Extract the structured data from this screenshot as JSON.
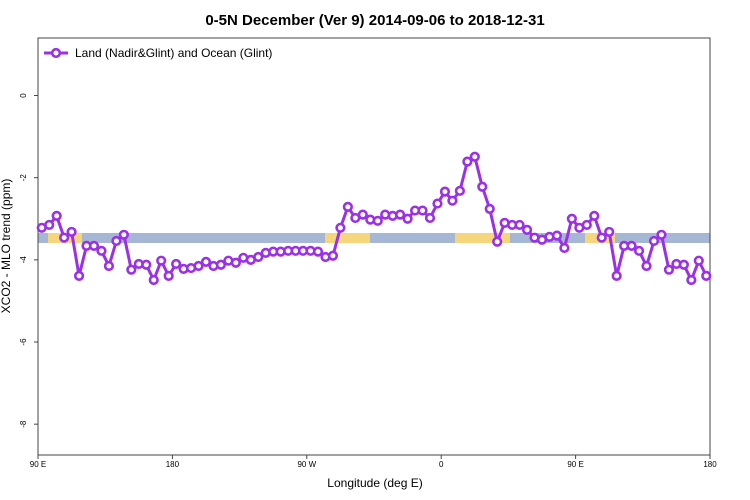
{
  "chart_data": {
    "type": "line",
    "title": "0-5N December (Ver 9)   2014-09-06 to 2018-12-31",
    "x_label": "Longitude (deg E)",
    "y_label": "XCO2 - MLO trend (ppm)",
    "x": [
      92.5,
      97.5,
      102.5,
      107.5,
      112.5,
      117.5,
      122.5,
      127.5,
      132.5,
      137.5,
      142.5,
      147.5,
      152.5,
      157.5,
      162.5,
      167.5,
      172.5,
      177.5,
      182.5,
      187.5,
      192.5,
      197.5,
      202.5,
      207.5,
      212.5,
      217.5,
      222.5,
      227.5,
      232.5,
      237.5,
      242.5,
      247.5,
      252.5,
      257.5,
      262.5,
      267.5,
      272.5,
      277.5,
      282.5,
      287.5,
      292.5,
      297.5,
      302.5,
      307.5,
      312.5,
      317.5,
      322.5,
      327.5,
      332.5,
      337.5,
      342.5,
      347.5,
      352.5,
      357.5,
      362.5,
      367.5,
      372.5,
      377.5,
      382.5,
      387.5,
      392.5,
      397.5,
      402.5,
      407.5,
      412.5,
      417.5,
      422.5,
      427.5,
      432.5,
      437.5,
      442.5,
      447.5,
      452.5,
      457.5,
      462.5,
      467.5,
      472.5,
      477.5,
      482.5,
      487.5,
      492.5,
      497.5,
      502.5,
      507.5,
      512.5,
      517.5,
      522.5,
      527.5,
      532.5,
      537.5
    ],
    "series": [
      {
        "name": "Land (Nadir&Glint) and Ocean (Glint)",
        "color": "#9b30e6",
        "values": [
          -3.22,
          -3.15,
          -2.93,
          -3.46,
          -3.32,
          -4.39,
          -3.66,
          -3.66,
          -3.78,
          -4.15,
          -3.54,
          -3.39,
          -4.24,
          -4.1,
          -4.12,
          -4.49,
          -4.02,
          -4.39,
          -4.1,
          -4.22,
          -4.2,
          -4.15,
          -4.05,
          -4.15,
          -4.12,
          -4.02,
          -4.07,
          -3.95,
          -4.0,
          -3.93,
          -3.83,
          -3.8,
          -3.8,
          -3.78,
          -3.78,
          -3.78,
          -3.78,
          -3.8,
          -3.93,
          -3.9,
          -3.22,
          -2.71,
          -2.98,
          -2.9,
          -3.02,
          -3.05,
          -2.9,
          -2.93,
          -2.9,
          -3.0,
          -2.8,
          -2.8,
          -2.98,
          -2.63,
          -2.34,
          -2.56,
          -2.32,
          -1.61,
          -1.49,
          -2.22,
          -2.76,
          -3.56,
          -3.1,
          -3.15,
          -3.15,
          -3.27,
          -3.46,
          -3.51,
          -3.44,
          -3.41,
          -3.71,
          -3.0,
          -3.22,
          -3.15,
          -2.93,
          -3.46,
          -3.32,
          -4.39,
          -3.66,
          -3.66,
          -3.78,
          -4.15,
          -3.54,
          -3.39,
          -4.24,
          -4.1,
          -4.12,
          -4.49,
          -4.02,
          -4.39
        ]
      }
    ],
    "xlim": [
      90,
      540
    ],
    "xticks": [
      {
        "value": 90,
        "label": "90 E"
      },
      180,
      {
        "value": 270,
        "label": "90 W"
      },
      {
        "value": 360,
        "label": "0"
      },
      {
        "value": 450,
        "label": "90 E"
      },
      {
        "value": 540,
        "label": "180"
      }
    ],
    "ylim": [
      -8.75,
      1.4
    ],
    "yticks": [
      0,
      -2,
      -4,
      -6,
      -8
    ],
    "legend": "top-left"
  }
}
